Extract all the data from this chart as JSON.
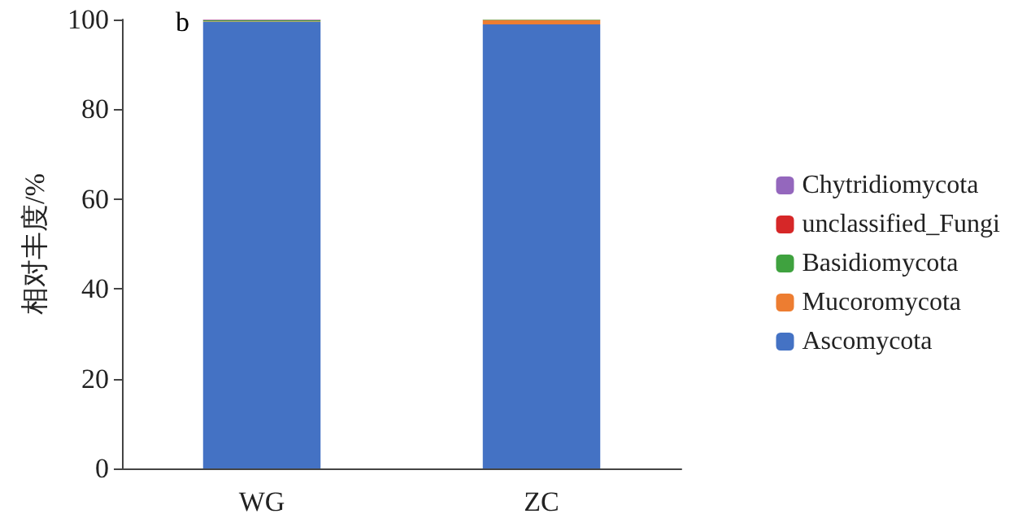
{
  "chart_data": {
    "type": "bar",
    "stacked": true,
    "ylabel": "相对丰度/%",
    "annotations": [
      "b"
    ],
    "categories": [
      "WG",
      "ZC"
    ],
    "series": [
      {
        "name": "Ascomycota",
        "color": "#4472c4",
        "values": [
          99.5,
          98.9
        ]
      },
      {
        "name": "Mucoromycota",
        "color": "#ed7d31",
        "values": [
          0.1,
          1.0
        ]
      },
      {
        "name": "Basidiomycota",
        "color": "#3fa23f",
        "values": [
          0.2,
          0.1
        ]
      },
      {
        "name": "unclassified_Fungi",
        "color": "#d62728",
        "values": [
          0.1,
          0
        ]
      },
      {
        "name": "Chytridiomycota",
        "color": "#9467bd",
        "values": [
          0.1,
          0
        ]
      }
    ],
    "ylim": [
      0,
      100
    ],
    "yticks": [
      0,
      20,
      40,
      60,
      80,
      100
    ],
    "grid": false,
    "legend": "right"
  }
}
